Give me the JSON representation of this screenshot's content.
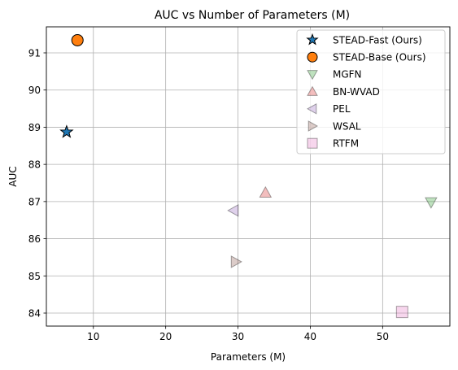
{
  "chart_data": {
    "type": "scatter",
    "title": "AUC vs Number of Parameters (M)",
    "xlabel": "Parameters (M)",
    "ylabel": "AUC",
    "xlim": [
      3.5,
      59.3
    ],
    "ylim": [
      83.65,
      91.7
    ],
    "xticks": [
      10,
      20,
      30,
      40,
      50
    ],
    "yticks": [
      84,
      85,
      86,
      87,
      88,
      89,
      90,
      91
    ],
    "grid": true,
    "legend_position": "top-right",
    "series": [
      {
        "name": "STEAD-Fast (Ours)",
        "x": 6.3,
        "y": 88.87,
        "marker": "star",
        "color": "#1f77b4",
        "alpha": 1.0
      },
      {
        "name": "STEAD-Base (Ours)",
        "x": 7.8,
        "y": 91.34,
        "marker": "circle",
        "color": "#ff7f0e",
        "alpha": 1.0
      },
      {
        "name": "MGFN",
        "x": 56.7,
        "y": 86.98,
        "marker": "triangle-down",
        "color": "#2ca02c",
        "alpha": 0.3
      },
      {
        "name": "BN-WVAD",
        "x": 33.8,
        "y": 87.24,
        "marker": "triangle-up",
        "color": "#d62728",
        "alpha": 0.3
      },
      {
        "name": "PEL",
        "x": 29.4,
        "y": 86.76,
        "marker": "triangle-left",
        "color": "#9467bd",
        "alpha": 0.3
      },
      {
        "name": "WSAL",
        "x": 29.7,
        "y": 85.38,
        "marker": "triangle-right",
        "color": "#8c564b",
        "alpha": 0.3
      },
      {
        "name": "RTFM",
        "x": 52.7,
        "y": 84.03,
        "marker": "square",
        "color": "#e377c2",
        "alpha": 0.3
      }
    ]
  }
}
